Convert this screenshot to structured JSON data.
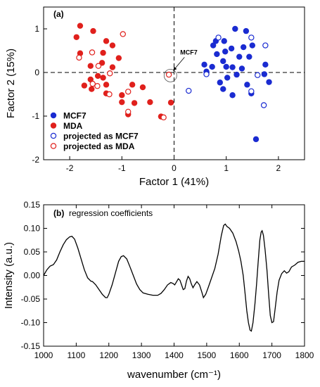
{
  "chart_data": [
    {
      "type": "scatter",
      "panel_label": "(a)",
      "xlabel": "Factor 1 (41%)",
      "ylabel": "Factor 2 (15%)",
      "xlim": [
        -2.5,
        2.5
      ],
      "ylim": [
        -2,
        1.5
      ],
      "x_ticks": [
        -2,
        -1,
        0,
        1,
        2
      ],
      "y_ticks": [
        -2,
        -1,
        0,
        1
      ],
      "x_tick_labels": [
        "-2",
        "-1",
        "0",
        "1",
        "2"
      ],
      "y_tick_labels": [
        "-2",
        "-1",
        "0",
        "1"
      ],
      "reference_lines": {
        "x": 0,
        "y": 0,
        "style": "dashed"
      },
      "annotation": {
        "text": "MCF7",
        "point": [
          -0.07,
          -0.07
        ]
      },
      "legend_position": "bottom-left",
      "series": [
        {
          "name": "MCF7",
          "marker": "filled-circle",
          "color": "#1a2bd1",
          "points": [
            [
              1.17,
              1.0
            ],
            [
              1.38,
              0.95
            ],
            [
              0.75,
              0.62
            ],
            [
              0.8,
              0.72
            ],
            [
              0.96,
              0.72
            ],
            [
              1.1,
              0.55
            ],
            [
              1.33,
              0.58
            ],
            [
              1.5,
              0.62
            ],
            [
              0.98,
              0.48
            ],
            [
              0.82,
              0.42
            ],
            [
              1.25,
              0.36
            ],
            [
              1.44,
              0.36
            ],
            [
              0.94,
              0.26
            ],
            [
              0.58,
              0.18
            ],
            [
              0.73,
              0.13
            ],
            [
              1.0,
              0.13
            ],
            [
              1.12,
              0.12
            ],
            [
              1.3,
              0.09
            ],
            [
              0.62,
              0.02
            ],
            [
              1.75,
              0.18
            ],
            [
              1.73,
              -0.04
            ],
            [
              1.02,
              -0.12
            ],
            [
              1.2,
              -0.05
            ],
            [
              0.88,
              -0.23
            ],
            [
              0.94,
              -0.38
            ],
            [
              1.12,
              -0.52
            ],
            [
              1.48,
              -0.48
            ],
            [
              1.4,
              -0.28
            ],
            [
              1.82,
              -0.22
            ],
            [
              1.57,
              -1.53
            ]
          ]
        },
        {
          "name": "MDA",
          "marker": "filled-circle",
          "color": "#e0201c",
          "points": [
            [
              -1.8,
              1.07
            ],
            [
              -1.87,
              0.81
            ],
            [
              -1.55,
              0.95
            ],
            [
              -1.3,
              0.72
            ],
            [
              -1.18,
              0.62
            ],
            [
              -1.36,
              0.45
            ],
            [
              -1.8,
              0.44
            ],
            [
              -1.06,
              0.33
            ],
            [
              -1.38,
              0.22
            ],
            [
              -1.6,
              0.15
            ],
            [
              -1.18,
              0.12
            ],
            [
              -1.46,
              -0.08
            ],
            [
              -1.36,
              -0.12
            ],
            [
              -1.6,
              -0.16
            ],
            [
              -1.3,
              -0.28
            ],
            [
              -1.72,
              -0.3
            ],
            [
              -1.58,
              -0.38
            ],
            [
              -1.3,
              -0.48
            ],
            [
              -0.8,
              -0.28
            ],
            [
              -0.6,
              -0.34
            ],
            [
              -1.0,
              -0.52
            ],
            [
              -0.76,
              -0.7
            ],
            [
              -1.0,
              -0.68
            ],
            [
              -0.46,
              -0.68
            ],
            [
              -0.06,
              -0.69
            ],
            [
              -0.88,
              -0.96
            ],
            [
              -0.25,
              -1.01
            ]
          ]
        },
        {
          "name": "projected as MCF7",
          "marker": "open-circle",
          "color": "#1a2bd1",
          "points": [
            [
              0.85,
              0.8
            ],
            [
              1.48,
              0.8
            ],
            [
              1.75,
              0.62
            ],
            [
              1.6,
              -0.06
            ],
            [
              0.62,
              -0.04
            ],
            [
              1.48,
              -0.43
            ],
            [
              0.28,
              -0.42
            ],
            [
              1.72,
              -0.75
            ]
          ]
        },
        {
          "name": "projected as MDA",
          "marker": "open-circle",
          "color": "#e0201c",
          "points": [
            [
              -0.98,
              0.88
            ],
            [
              -1.57,
              0.46
            ],
            [
              -1.82,
              0.34
            ],
            [
              -1.45,
              0.15
            ],
            [
              -1.23,
              -0.02
            ],
            [
              -1.56,
              -0.26
            ],
            [
              -1.47,
              -0.31
            ],
            [
              -1.24,
              -0.5
            ],
            [
              -0.88,
              -0.44
            ],
            [
              -0.1,
              -0.05
            ],
            [
              -0.88,
              -0.9
            ],
            [
              -0.2,
              -1.03
            ]
          ]
        }
      ]
    },
    {
      "type": "line",
      "panel_label": "(b)",
      "title": "regression coefficients",
      "xlabel": "wavenumber (cm⁻¹)",
      "ylabel": "Intensity (a.u.)",
      "xlim": [
        1000,
        1800
      ],
      "ylim": [
        -0.15,
        0.15
      ],
      "x_ticks": [
        1000,
        1100,
        1200,
        1300,
        1400,
        1500,
        1600,
        1700,
        1800
      ],
      "y_ticks": [
        -0.15,
        -0.1,
        -0.05,
        0.0,
        0.05,
        0.1,
        0.15
      ],
      "x_tick_labels": [
        "1000",
        "1100",
        "1200",
        "1300",
        "1400",
        "1500",
        "1600",
        "1700",
        "1800"
      ],
      "y_tick_labels": [
        "-0.15",
        "-0.10",
        "-0.05",
        "0.00",
        "0.05",
        "0.10",
        "0.15"
      ],
      "series": [
        {
          "color": "#000000",
          "points": [
            [
              1000,
              0.0
            ],
            [
              1010,
              0.012
            ],
            [
              1020,
              0.02
            ],
            [
              1030,
              0.023
            ],
            [
              1040,
              0.033
            ],
            [
              1050,
              0.05
            ],
            [
              1060,
              0.065
            ],
            [
              1070,
              0.076
            ],
            [
              1080,
              0.082
            ],
            [
              1087,
              0.083
            ],
            [
              1095,
              0.077
            ],
            [
              1105,
              0.058
            ],
            [
              1115,
              0.035
            ],
            [
              1125,
              0.012
            ],
            [
              1135,
              -0.005
            ],
            [
              1145,
              -0.012
            ],
            [
              1150,
              -0.013
            ],
            [
              1160,
              -0.02
            ],
            [
              1170,
              -0.03
            ],
            [
              1180,
              -0.04
            ],
            [
              1190,
              -0.047
            ],
            [
              1195,
              -0.047
            ],
            [
              1200,
              -0.04
            ],
            [
              1210,
              -0.02
            ],
            [
              1220,
              0.005
            ],
            [
              1230,
              0.03
            ],
            [
              1238,
              0.04
            ],
            [
              1245,
              0.042
            ],
            [
              1255,
              0.035
            ],
            [
              1265,
              0.018
            ],
            [
              1275,
              0.0
            ],
            [
              1285,
              -0.018
            ],
            [
              1295,
              -0.03
            ],
            [
              1305,
              -0.037
            ],
            [
              1320,
              -0.04
            ],
            [
              1335,
              -0.042
            ],
            [
              1350,
              -0.042
            ],
            [
              1360,
              -0.038
            ],
            [
              1370,
              -0.03
            ],
            [
              1380,
              -0.02
            ],
            [
              1390,
              -0.015
            ],
            [
              1397,
              -0.017
            ],
            [
              1402,
              -0.02
            ],
            [
              1408,
              -0.013
            ],
            [
              1413,
              -0.007
            ],
            [
              1418,
              -0.01
            ],
            [
              1423,
              -0.02
            ],
            [
              1428,
              -0.03
            ],
            [
              1433,
              -0.028
            ],
            [
              1438,
              -0.012
            ],
            [
              1443,
              -0.002
            ],
            [
              1448,
              -0.007
            ],
            [
              1453,
              -0.018
            ],
            [
              1458,
              -0.026
            ],
            [
              1463,
              -0.02
            ],
            [
              1470,
              -0.013
            ],
            [
              1478,
              -0.02
            ],
            [
              1485,
              -0.035
            ],
            [
              1490,
              -0.047
            ],
            [
              1497,
              -0.04
            ],
            [
              1505,
              -0.025
            ],
            [
              1515,
              -0.005
            ],
            [
              1525,
              0.015
            ],
            [
              1535,
              0.045
            ],
            [
              1545,
              0.085
            ],
            [
              1552,
              0.106
            ],
            [
              1557,
              0.109
            ],
            [
              1562,
              0.104
            ],
            [
              1570,
              0.1
            ],
            [
              1580,
              0.09
            ],
            [
              1590,
              0.072
            ],
            [
              1598,
              0.052
            ],
            [
              1605,
              0.03
            ],
            [
              1612,
              0.0
            ],
            [
              1618,
              -0.04
            ],
            [
              1623,
              -0.075
            ],
            [
              1628,
              -0.1
            ],
            [
              1633,
              -0.116
            ],
            [
              1637,
              -0.118
            ],
            [
              1642,
              -0.1
            ],
            [
              1648,
              -0.06
            ],
            [
              1653,
              -0.018
            ],
            [
              1658,
              0.03
            ],
            [
              1663,
              0.075
            ],
            [
              1667,
              0.092
            ],
            [
              1670,
              0.095
            ],
            [
              1674,
              0.085
            ],
            [
              1679,
              0.055
            ],
            [
              1685,
              0.01
            ],
            [
              1690,
              -0.04
            ],
            [
              1695,
              -0.085
            ],
            [
              1700,
              -0.1
            ],
            [
              1705,
              -0.098
            ],
            [
              1710,
              -0.07
            ],
            [
              1716,
              -0.035
            ],
            [
              1722,
              -0.01
            ],
            [
              1730,
              0.004
            ],
            [
              1738,
              0.01
            ],
            [
              1745,
              0.005
            ],
            [
              1752,
              0.008
            ],
            [
              1760,
              0.018
            ],
            [
              1770,
              0.022
            ],
            [
              1780,
              0.028
            ],
            [
              1790,
              0.03
            ],
            [
              1800,
              0.03
            ]
          ]
        }
      ]
    }
  ]
}
